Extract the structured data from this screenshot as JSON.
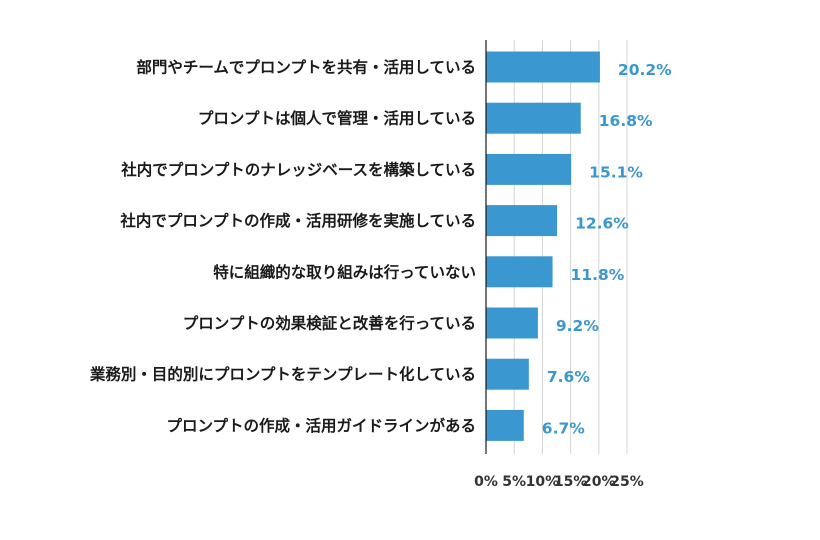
{
  "colors": {
    "bar": "#3b97cf",
    "value_label": "#3b97cf",
    "grid": "#d4d4d4",
    "text": "#1a1a1a"
  },
  "chart_data": {
    "type": "bar",
    "orientation": "horizontal",
    "categories": [
      "部門やチームでプロンプトを共有・活用している",
      "プロンプトは個人で管理・活用している",
      "社内でプロンプトのナレッジベースを構築している",
      "社内でプロンプトの作成・活用研修を実施している",
      "特に組織的な取り組みは行っていない",
      "プロンプトの効果検証と改善を行っている",
      "業務別・目的別にプロンプトをテンプレート化している",
      "プロンプトの作成・活用ガイドラインがある"
    ],
    "values": [
      20.2,
      16.8,
      15.1,
      12.6,
      11.8,
      9.2,
      7.6,
      6.7
    ],
    "value_labels": [
      "20.2%",
      "16.8%",
      "15.1%",
      "12.6%",
      "11.8%",
      "9.2%",
      "7.6%",
      "6.7%"
    ],
    "x_ticks": [
      0,
      5,
      10,
      15,
      20,
      25
    ],
    "x_tick_labels": [
      "0%",
      "5%",
      "10%",
      "15%",
      "20%",
      "25%"
    ],
    "xlim": [
      0,
      25
    ],
    "title": "",
    "xlabel": "",
    "ylabel": "",
    "grid": true,
    "legend": "none"
  }
}
